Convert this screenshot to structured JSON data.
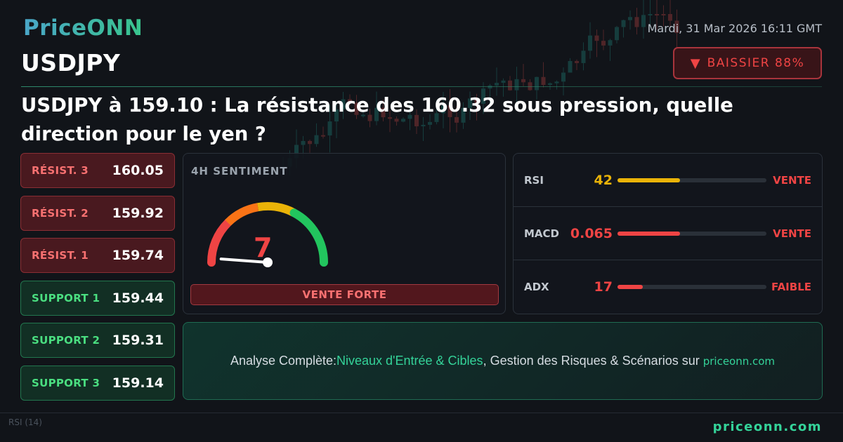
{
  "header": {
    "logo_text": "PriceONN",
    "datetime": "Mardi, 31 Mar 2026 16:11 GMT",
    "symbol": "USDJPY",
    "badge": {
      "icon": "triangle-down-icon",
      "text": "BAISSIER 88%"
    },
    "headline": "USDJPY à 159.10 : La résistance des 160.32 sous pression, quelle direction pour le yen ?"
  },
  "levels": [
    {
      "label": "RÉSIST. 3",
      "value": "160.05",
      "kind": "resistance"
    },
    {
      "label": "RÉSIST. 2",
      "value": "159.92",
      "kind": "resistance"
    },
    {
      "label": "RÉSIST. 1",
      "value": "159.74",
      "kind": "resistance"
    },
    {
      "label": "SUPPORT 1",
      "value": "159.44",
      "kind": "support"
    },
    {
      "label": "SUPPORT 2",
      "value": "159.31",
      "kind": "support"
    },
    {
      "label": "SUPPORT 3",
      "value": "159.14",
      "kind": "support"
    }
  ],
  "sentiment": {
    "title": "4H SENTIMENT",
    "score": "7",
    "gauge_fraction": 0.07,
    "label": "VENTE FORTE",
    "gauge_colors": [
      "#ef4444",
      "#f97316",
      "#eab308",
      "#22c55e"
    ]
  },
  "indicators": [
    {
      "name": "RSI",
      "value": "42",
      "level": 0.42,
      "color": "#eab308",
      "signal": "VENTE"
    },
    {
      "name": "MACD",
      "value": "0.065",
      "level": 0.42,
      "color": "#ef4444",
      "signal": "VENTE"
    },
    {
      "name": "ADX",
      "value": "17",
      "level": 0.17,
      "color": "#ef4444",
      "signal": "FAIBLE"
    }
  ],
  "cta": {
    "prefix": "Analyse Complète: ",
    "highlight": "Niveaux d'Entrée & Cibles",
    "middle": ", Gestion des Risques & Scénarios sur",
    "domain": "priceonn.com"
  },
  "footer": {
    "domain": "priceonn.com",
    "rsi_label": "RSI",
    "rsi_period": "(14)"
  },
  "colors": {
    "bearish": "#ef4444",
    "bullish": "#4ade80",
    "accent": "#34d399"
  }
}
